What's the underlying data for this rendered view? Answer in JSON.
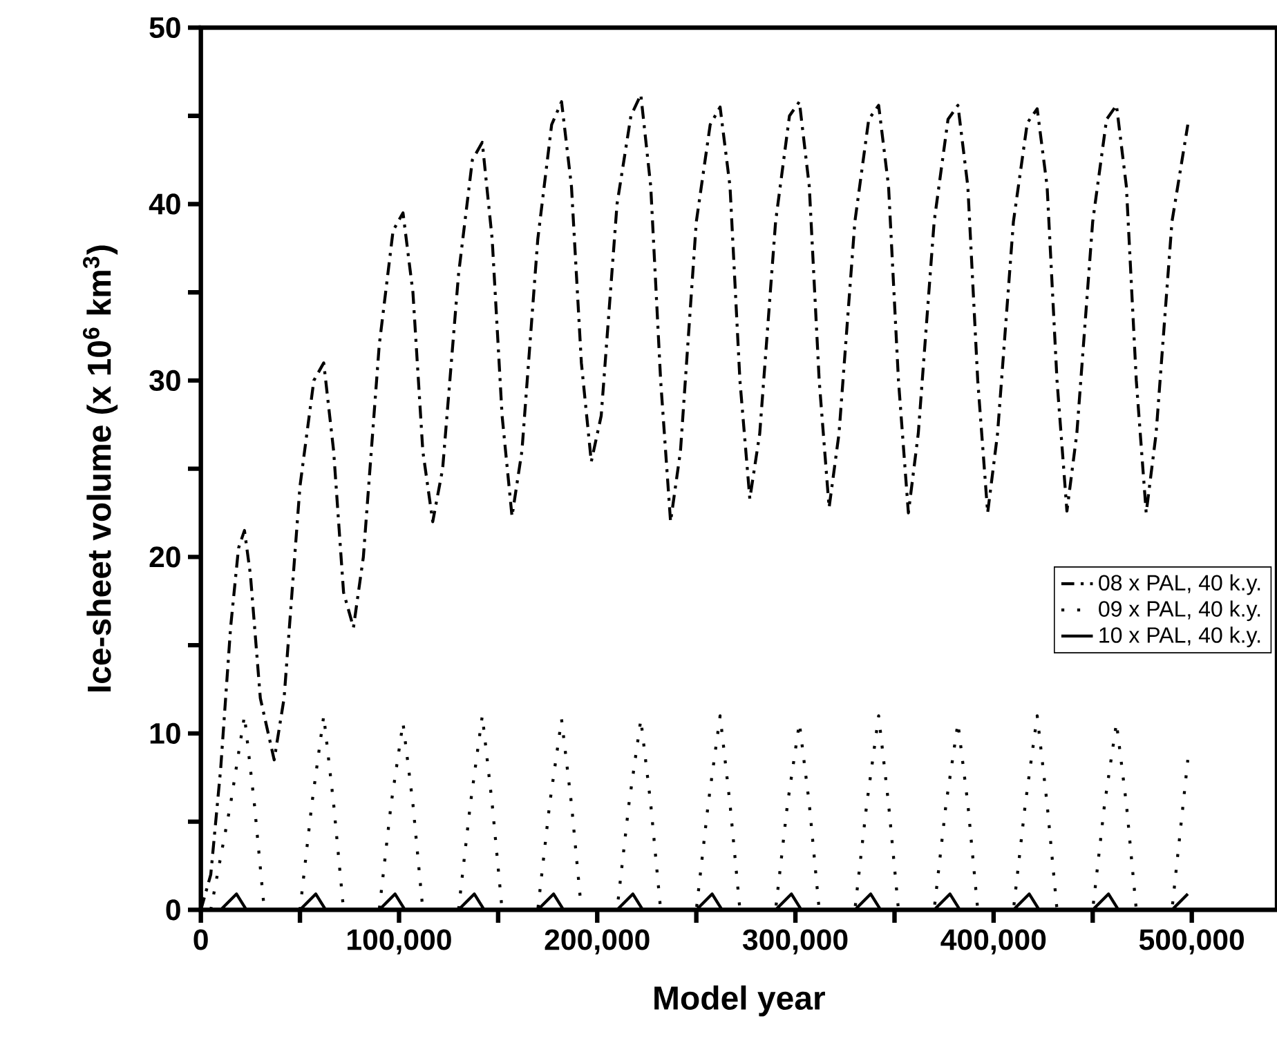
{
  "chart_data": {
    "type": "line",
    "xlabel": "Model year",
    "ylabel": "Ice-sheet volume (x 10$^{6}$ km$^{3}$)",
    "xlim": [
      0,
      543000
    ],
    "ylim": [
      0,
      50
    ],
    "xticks": [
      0,
      {
        "value": 50000,
        "label": null
      },
      {
        "value": 100000,
        "label": "100,000"
      },
      {
        "value": 150000,
        "label": null
      },
      {
        "value": 200000,
        "label": "200,000"
      },
      {
        "value": 250000,
        "label": null
      },
      {
        "value": 300000,
        "label": "300,000"
      },
      {
        "value": 350000,
        "label": null
      },
      {
        "value": 400000,
        "label": "400,000"
      },
      {
        "value": 450000,
        "label": null
      },
      {
        "value": 500000,
        "label": "500,000"
      }
    ],
    "yticks": [
      0,
      {
        "value": 5,
        "label": null
      },
      10,
      {
        "value": 15,
        "label": null
      },
      20,
      {
        "value": 25,
        "label": null
      },
      30,
      {
        "value": 35,
        "label": null
      },
      40,
      {
        "value": 45,
        "label": null
      },
      50
    ],
    "legend": "right",
    "series": [
      {
        "name": "08 x PAL, 40 k.y.",
        "color": "#000000",
        "line_style": "dashdot",
        "x": [
          0,
          5000,
          10000,
          15000,
          19000,
          22000,
          25000,
          30000,
          37000,
          42000,
          50000,
          57000,
          62000,
          67000,
          72000,
          77000,
          82000,
          90000,
          97000,
          102000,
          107000,
          112000,
          117000,
          122000,
          130000,
          137000,
          142000,
          147000,
          152000,
          157000,
          162000,
          170000,
          177000,
          182000,
          187000,
          192000,
          197000,
          202000,
          210000,
          217000,
          222000,
          227000,
          232000,
          237000,
          242000,
          250000,
          257000,
          262000,
          267000,
          272000,
          277000,
          282000,
          290000,
          297000,
          302000,
          307000,
          312000,
          317000,
          322000,
          330000,
          337000,
          342000,
          347000,
          352000,
          357000,
          362000,
          370000,
          377000,
          382000,
          387000,
          392000,
          397000,
          402000,
          410000,
          417000,
          422000,
          427000,
          432000,
          437000,
          442000,
          450000,
          457000,
          462000,
          467000,
          472000,
          477000,
          482000,
          490000,
          498000
        ],
        "values": [
          0,
          2,
          8,
          16,
          20.5,
          21.5,
          19,
          12,
          8.5,
          12,
          24,
          30,
          31,
          26,
          18,
          16,
          20,
          32,
          38.5,
          39.5,
          35,
          26,
          22,
          25,
          36,
          42.5,
          43.5,
          38,
          28,
          22.3,
          26,
          38,
          44.5,
          45.8,
          41,
          31,
          25.4,
          28,
          40,
          45,
          46.2,
          41,
          30,
          22,
          26,
          39,
          44.5,
          45.5,
          41,
          30,
          23.3,
          27,
          39,
          45,
          45.8,
          41,
          30,
          22.8,
          27,
          39,
          44.8,
          45.6,
          41,
          30,
          22.5,
          27,
          39,
          44.8,
          45.6,
          41,
          30,
          22.5,
          27,
          39,
          44.6,
          45.4,
          41,
          30,
          22.6,
          27,
          39,
          44.8,
          45.6,
          41,
          30,
          22.5,
          27,
          39,
          44.5
        ]
      },
      {
        "name": "09 x PAL, 40 k.y.",
        "color": "#000000",
        "line_style": "dotted",
        "x": [
          5000,
          15000,
          22000,
          27000,
          32000,
          50000,
          56000,
          62000,
          67000,
          72000,
          90000,
          96000,
          102000,
          107000,
          112000,
          130000,
          136000,
          142000,
          147000,
          152000,
          170000,
          176000,
          182000,
          187000,
          192000,
          210000,
          216000,
          222000,
          227000,
          232000,
          250000,
          256000,
          262000,
          267000,
          272000,
          290000,
          296000,
          302000,
          307000,
          312000,
          330000,
          336000,
          342000,
          347000,
          352000,
          370000,
          376000,
          382000,
          387000,
          392000,
          410000,
          416000,
          422000,
          427000,
          432000,
          450000,
          456000,
          462000,
          467000,
          472000,
          490000,
          498000
        ],
        "values": [
          0,
          6,
          11,
          6,
          0,
          0,
          6,
          11,
          6,
          0,
          0,
          6,
          10.6,
          6,
          0,
          0,
          6,
          11,
          6,
          0,
          0,
          6,
          10.8,
          6,
          0,
          0,
          6,
          10.8,
          6,
          0,
          0,
          6,
          11,
          6,
          0,
          0,
          6,
          10.6,
          6,
          0,
          0,
          6,
          11,
          6,
          0,
          0,
          6,
          10.6,
          6,
          0,
          0,
          6,
          11,
          6,
          0,
          0,
          6,
          10.6,
          6,
          0,
          0,
          8.5
        ]
      },
      {
        "name": "10 x PAL, 40 k.y.",
        "color": "#000000",
        "line_style": "solid",
        "x": [
          10000,
          18000,
          23000,
          50000,
          58000,
          63000,
          90000,
          98000,
          103000,
          130000,
          138000,
          143000,
          170000,
          178000,
          183000,
          210000,
          218000,
          223000,
          250000,
          258000,
          263000,
          290000,
          298000,
          303000,
          330000,
          338000,
          343000,
          370000,
          378000,
          383000,
          410000,
          418000,
          423000,
          450000,
          458000,
          463000,
          490000,
          498000
        ],
        "values": [
          0,
          0.9,
          0,
          0,
          0.9,
          0,
          0,
          0.9,
          0,
          0,
          0.9,
          0,
          0,
          0.9,
          0,
          0,
          0.9,
          0,
          0,
          0.9,
          0,
          0,
          0.9,
          0,
          0,
          0.9,
          0,
          0,
          0.9,
          0,
          0,
          0.9,
          0,
          0,
          0.9,
          0,
          0,
          0.9
        ]
      }
    ]
  }
}
